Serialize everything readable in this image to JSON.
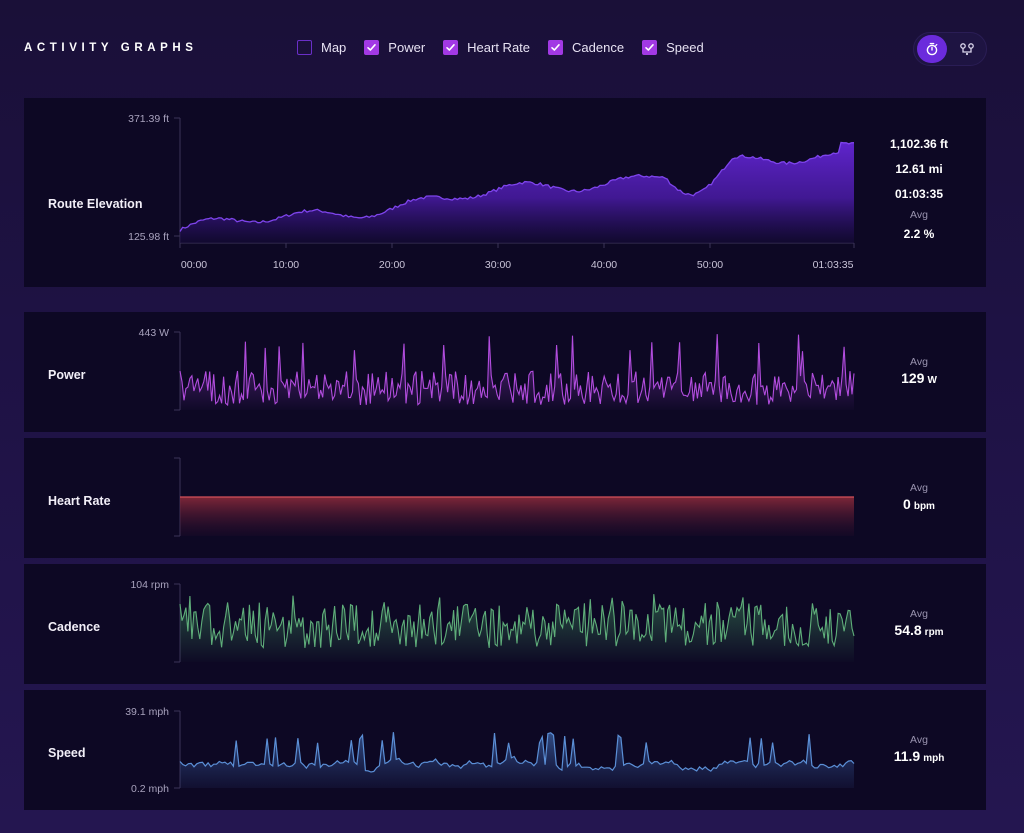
{
  "header": {
    "title": "ACTIVITY GRAPHS",
    "toggles": [
      {
        "label": "Map",
        "checked": false
      },
      {
        "label": "Power",
        "checked": true
      },
      {
        "label": "Heart Rate",
        "checked": true
      },
      {
        "label": "Cadence",
        "checked": true
      },
      {
        "label": "Speed",
        "checked": true
      }
    ],
    "view_switch": {
      "active_icon": "stopwatch-icon",
      "inactive_icon": "route-icon"
    }
  },
  "colors": {
    "accent": "#a239e4",
    "elevation": "#5b22c4",
    "power": "#b24dde",
    "heart_rate": "#c0444a",
    "cadence": "#5fae7a",
    "speed": "#4f7fc4"
  },
  "elevation": {
    "label": "Route Elevation",
    "y_max_label": "371.39 ft",
    "y_min_label": "125.98 ft",
    "x_ticks": [
      "00:00",
      "10:00",
      "20:00",
      "30:00",
      "40:00",
      "50:00",
      "01:03:35"
    ],
    "stats": {
      "elevation_gain": "1,102.36 ft",
      "distance": "12.61 mi",
      "duration": "01:03:35",
      "avg_label": "Avg",
      "avg_grade": "2.2 %"
    }
  },
  "power": {
    "label": "Power",
    "y_max_label": "443 W",
    "avg_label": "Avg",
    "avg_value": "129",
    "unit": "W"
  },
  "heart_rate": {
    "label": "Heart Rate",
    "avg_label": "Avg",
    "avg_value": "0",
    "unit": "bpm"
  },
  "cadence": {
    "label": "Cadence",
    "y_max_label": "104 rpm",
    "avg_label": "Avg",
    "avg_value": "54.8",
    "unit": "rpm"
  },
  "speed": {
    "label": "Speed",
    "y_max_label": "39.1 mph",
    "y_min_label": "0.2 mph",
    "avg_label": "Avg",
    "avg_value": "11.9",
    "unit": "mph"
  }
}
